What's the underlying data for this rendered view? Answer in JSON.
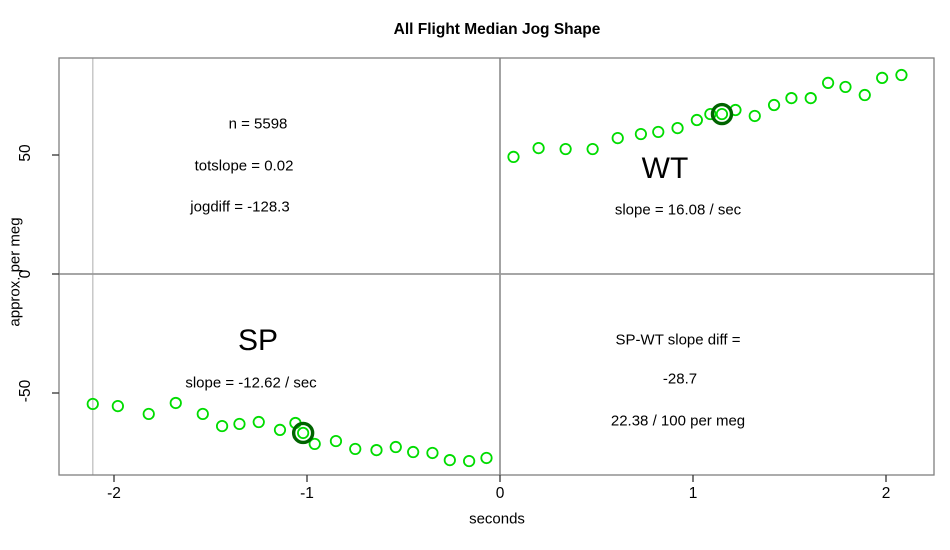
{
  "title": "All Flight Median Jog Shape",
  "x_axis": {
    "label": "seconds",
    "tick_labels": [
      "-2",
      "-1",
      "0",
      "1",
      "2"
    ]
  },
  "y_axis": {
    "label": "approx. per meg",
    "tick_labels": [
      "-50",
      "0",
      "50"
    ]
  },
  "annotations": {
    "n": "n = 5598",
    "totslope": "totslope = 0.02",
    "jogdiff": "jogdiff = -128.3",
    "wt_label": "WT",
    "wt_slope": "slope = 16.08 / sec",
    "sp_label": "SP",
    "sp_slope": "slope = -12.62 / sec",
    "diff_line1": "SP-WT slope diff =",
    "diff_line2": "-28.7",
    "diff_line3": "22.38 / 100 per meg"
  },
  "colors": {
    "point_green": "#00DC00",
    "highlight_dark_green": "#006400",
    "axis_box_gray": "#808080",
    "quadrant_line_gray": "#999999",
    "reference_line_gray": "#C8C8C8",
    "tick_mark": "#333333",
    "text": "#000000"
  },
  "chart_data": {
    "type": "scatter",
    "title": "All Flight Median Jog Shape",
    "xlabel": "seconds",
    "ylabel": "approx. per meg",
    "xlim": [
      -2.28,
      2.25
    ],
    "ylim": [
      -84.5,
      90.8
    ],
    "x_ticks": [
      -2,
      -1,
      0,
      1,
      2
    ],
    "y_ticks": [
      -50,
      0,
      50
    ],
    "grid": false,
    "quadrant_lines": {
      "x": 0,
      "y": 0
    },
    "reference_vline_x": -2.11,
    "series": [
      {
        "name": "SP",
        "marker": "open-circle",
        "points": [
          [
            -2.11,
            -54.6
          ],
          [
            -1.98,
            -55.5
          ],
          [
            -1.82,
            -58.8
          ],
          [
            -1.68,
            -54.2
          ],
          [
            -1.54,
            -58.8
          ],
          [
            -1.44,
            -63.9
          ],
          [
            -1.35,
            -63.0
          ],
          [
            -1.25,
            -62.2
          ],
          [
            -1.14,
            -65.5
          ],
          [
            -1.06,
            -62.6
          ],
          [
            -1.02,
            -66.8
          ],
          [
            -0.96,
            -71.4
          ],
          [
            -0.85,
            -70.2
          ],
          [
            -0.75,
            -73.5
          ],
          [
            -0.64,
            -74.0
          ],
          [
            -0.54,
            -72.7
          ],
          [
            -0.45,
            -74.8
          ],
          [
            -0.35,
            -75.2
          ],
          [
            -0.26,
            -78.2
          ],
          [
            -0.16,
            -78.6
          ],
          [
            -0.07,
            -77.3
          ]
        ],
        "highlight_point": [
          -1.02,
          -66.8
        ],
        "slope_per_sec": -12.62
      },
      {
        "name": "WT",
        "marker": "open-circle",
        "points": [
          [
            0.07,
            49.2
          ],
          [
            0.2,
            52.9
          ],
          [
            0.34,
            52.5
          ],
          [
            0.48,
            52.5
          ],
          [
            0.61,
            57.1
          ],
          [
            0.73,
            58.8
          ],
          [
            0.82,
            59.7
          ],
          [
            0.92,
            61.3
          ],
          [
            1.02,
            64.7
          ],
          [
            1.09,
            67.2
          ],
          [
            1.15,
            67.2
          ],
          [
            1.22,
            68.9
          ],
          [
            1.32,
            66.4
          ],
          [
            1.42,
            71.0
          ],
          [
            1.51,
            73.9
          ],
          [
            1.61,
            73.9
          ],
          [
            1.7,
            80.3
          ],
          [
            1.79,
            78.6
          ],
          [
            1.89,
            75.2
          ],
          [
            1.98,
            82.4
          ],
          [
            2.08,
            83.6
          ]
        ],
        "highlight_point": [
          1.15,
          67.2
        ],
        "slope_per_sec": 16.08
      }
    ]
  }
}
